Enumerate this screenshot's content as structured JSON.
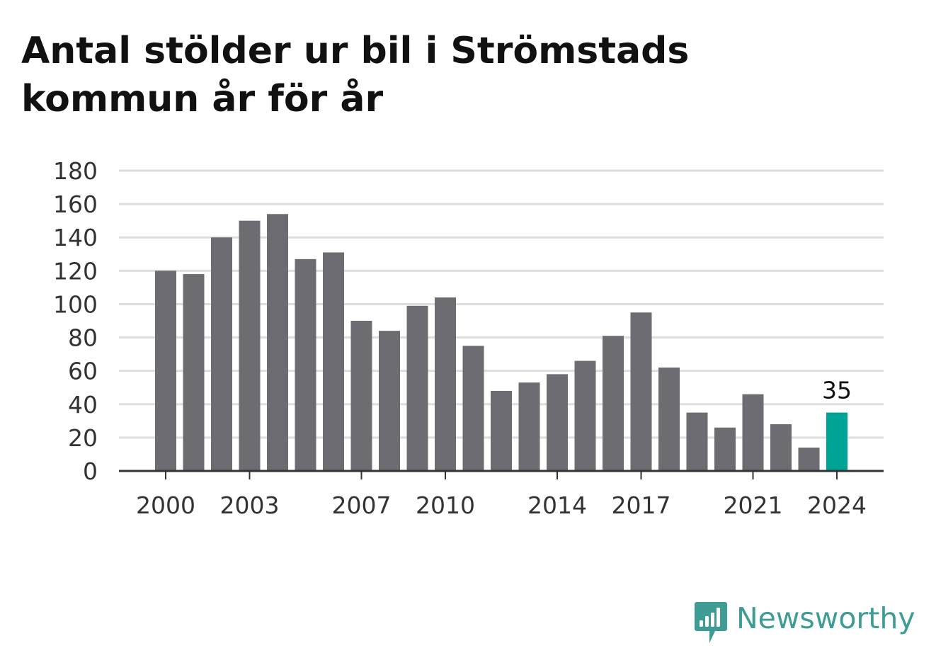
{
  "title": "Antal stölder ur bil i Strömstads kommun år för år",
  "brand": {
    "name": "Newsworthy",
    "color": "#3e9c94",
    "icon": "bar-chart-speech-bubble-icon"
  },
  "colors": {
    "bar": "#6d6c71",
    "highlight": "#00a497",
    "grid": "#dddddd",
    "axis": "#333333"
  },
  "chart_data": {
    "type": "bar",
    "categories": [
      "2000",
      "2001",
      "2002",
      "2003",
      "2004",
      "2005",
      "2006",
      "2007",
      "2008",
      "2009",
      "2010",
      "2011",
      "2012",
      "2013",
      "2014",
      "2015",
      "2016",
      "2017",
      "2018",
      "2019",
      "2020",
      "2021",
      "2022",
      "2023",
      "2024"
    ],
    "values": [
      120,
      118,
      140,
      150,
      154,
      127,
      131,
      90,
      84,
      99,
      104,
      75,
      48,
      53,
      58,
      66,
      81,
      95,
      62,
      35,
      26,
      46,
      28,
      14,
      35
    ],
    "x_tick_labels": [
      "2000",
      "2003",
      "2007",
      "2010",
      "2014",
      "2017",
      "2021",
      "2024"
    ],
    "y_ticks": [
      0,
      20,
      40,
      60,
      80,
      100,
      120,
      140,
      160,
      180
    ],
    "ylim": [
      0,
      180
    ],
    "highlight_category": "2024",
    "highlight_label": "35",
    "grid": true
  }
}
